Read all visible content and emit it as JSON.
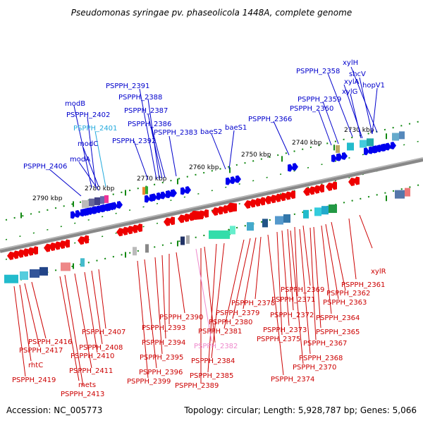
{
  "title": "Pseudomonas syringae pv. phaseolicola 1448A, complete genome",
  "footer": {
    "accession": "Accession: NC_005773",
    "topology": "Topology: circular; Length: 5,928,787 bp; Genes: 5,066"
  },
  "colors": {
    "forward": "#0000ee",
    "reverse": "#ee0000",
    "label_forward": "#0000cc",
    "label_reverse": "#cc0000",
    "highlight_cyan": "#22aadd",
    "highlight_pink": "#ee88cc",
    "kbp_tick": "#118811",
    "backbone": "#777777"
  },
  "kbp_labels": [
    "2730 kbp",
    "2740 kbp",
    "2750 kbp",
    "2760 kbp",
    "2770 kbp",
    "2780 kbp",
    "2790 kbp"
  ],
  "top_labels": [
    "xylH",
    "shcV",
    "PSPPH_2358",
    "xylA",
    "hopV1",
    "xylG",
    "PSPPH_2359",
    "PSPPH_2360",
    "PSPPH_2366",
    "baeS1",
    "baeS2",
    "PSPPH_2391",
    "PSPPH_2388",
    "PSPPH_2387",
    "PSPPH_2386",
    "PSPPH_2383",
    "PSPPH_2392",
    "modB",
    "PSPPH_2402",
    "PSPPH_2401",
    "modC",
    "modA",
    "PSPPH_2406"
  ],
  "bottom_labels": [
    "PSPPH_2361",
    "xylR",
    "PSPPH_2362",
    "PSPPH_2363",
    "PSPPH_2369",
    "PSPPH_2371",
    "PSPPH_2364",
    "PSPPH_2372",
    "PSPPH_2365",
    "PSPPH_2373",
    "PSPPH_2375",
    "PSPPH_2367",
    "PSPPH_2368",
    "PSPPH_2370",
    "PSPPH_2374",
    "PSPPH_2378",
    "PSPPH_2379",
    "PSPPH_2380",
    "PSPPH_2381",
    "PSPPH_2382",
    "PSPPH_2384",
    "PSPPH_2385",
    "PSPPH_2389",
    "PSPPH_2390",
    "PSPPH_2393",
    "PSPPH_2394",
    "PSPPH_2395",
    "PSPPH_2396",
    "PSPPH_2399",
    "PSPPH_2407",
    "PSPPH_2408",
    "PSPPH_2410",
    "PSPPH_2411",
    "PSPPH_2413",
    "mets",
    "PSPPH_2416",
    "PSPPH_2417",
    "rhtC",
    "PSPPH_2419"
  ]
}
